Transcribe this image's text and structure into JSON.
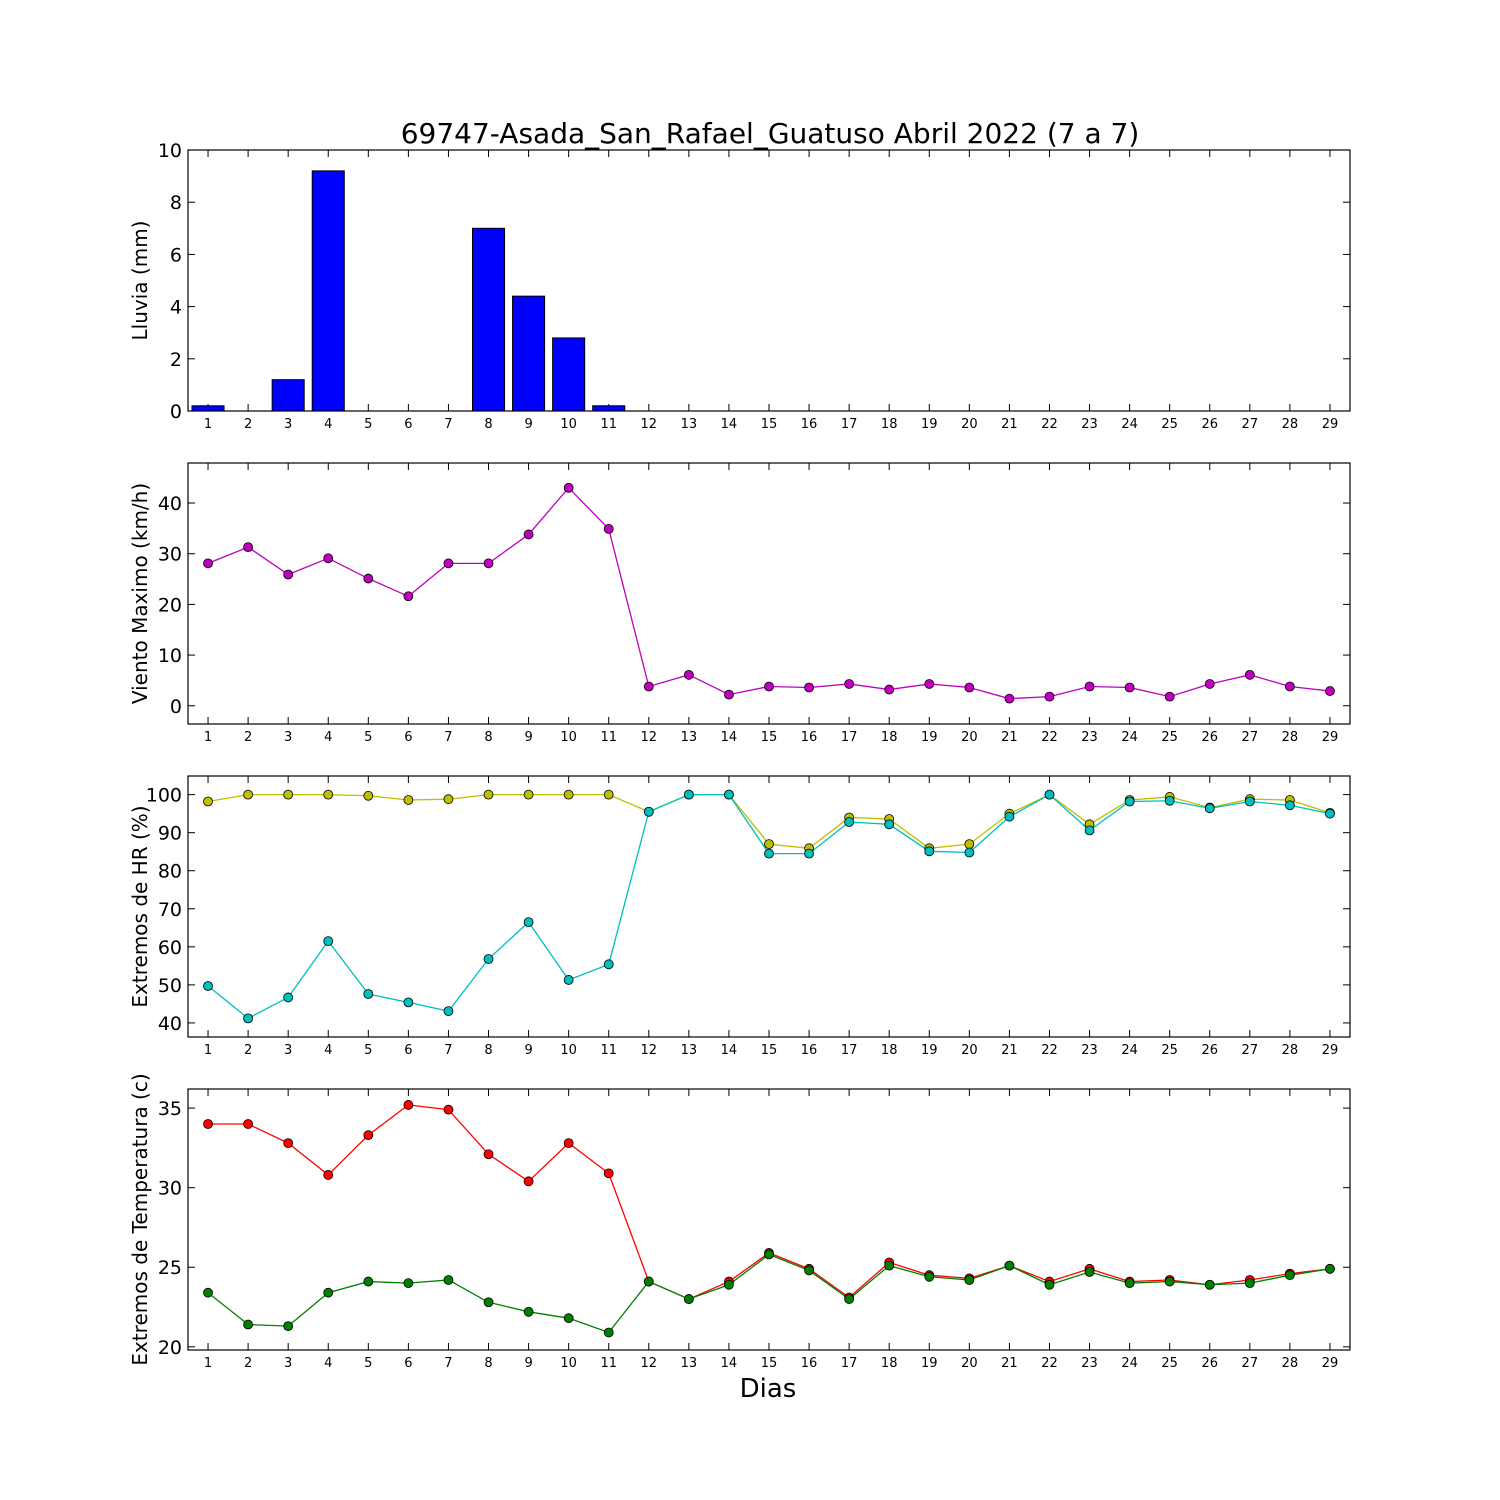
{
  "title": "69747-Asada_San_Rafael_Guatuso Abril 2022  (7 a 7)",
  "xlabel": "Dias",
  "chart_data": [
    {
      "type": "bar",
      "ylabel": "Lluvia (mm)",
      "ylim": [
        0,
        10
      ],
      "yticks": [
        0,
        2,
        4,
        6,
        8,
        10
      ],
      "x": [
        1,
        2,
        3,
        4,
        5,
        6,
        7,
        8,
        9,
        10,
        11,
        12,
        13,
        14,
        15,
        16,
        17,
        18,
        19,
        20,
        21,
        22,
        23,
        24,
        25,
        26,
        27,
        28,
        29
      ],
      "series": [
        {
          "color": "#0000ff",
          "values": [
            0.2,
            0,
            1.2,
            9.2,
            0,
            0,
            0,
            7.0,
            4.4,
            2.8,
            0.2,
            0,
            0,
            0,
            0,
            0,
            0,
            0,
            0,
            0,
            0,
            0,
            0,
            0,
            0,
            0,
            0,
            0,
            0
          ]
        }
      ]
    },
    {
      "type": "line",
      "ylabel": "Viento Maximo (km/h)",
      "ylim": [
        -3.6,
        47.9
      ],
      "yticks": [
        0,
        10,
        20,
        30,
        40
      ],
      "x": [
        1,
        2,
        3,
        4,
        5,
        6,
        7,
        8,
        9,
        10,
        11,
        12,
        13,
        14,
        15,
        16,
        17,
        18,
        19,
        20,
        21,
        22,
        23,
        24,
        25,
        26,
        27,
        28,
        29
      ],
      "series": [
        {
          "color": "#bf00bf",
          "values": [
            28.1,
            31.3,
            25.9,
            29.1,
            25.1,
            21.6,
            28.1,
            28.1,
            33.8,
            43.0,
            34.9,
            3.8,
            6.1,
            2.2,
            3.8,
            3.6,
            4.3,
            3.2,
            4.3,
            3.6,
            1.4,
            1.8,
            3.8,
            3.6,
            1.8,
            4.3,
            6.1,
            3.8,
            2.9
          ]
        }
      ]
    },
    {
      "type": "line",
      "ylabel": "Extremos de HR (%)",
      "ylim": [
        36.3,
        104.9
      ],
      "yticks": [
        40,
        50,
        60,
        70,
        80,
        90,
        100
      ],
      "x": [
        1,
        2,
        3,
        4,
        5,
        6,
        7,
        8,
        9,
        10,
        11,
        12,
        13,
        14,
        15,
        16,
        17,
        18,
        19,
        20,
        21,
        22,
        23,
        24,
        25,
        26,
        27,
        28,
        29
      ],
      "series": [
        {
          "color": "#bfbf00",
          "values": [
            98.2,
            100,
            100,
            100,
            99.7,
            98.6,
            98.8,
            100,
            100,
            100,
            100,
            95.5,
            100,
            100,
            87.0,
            85.9,
            94.0,
            93.6,
            85.9,
            87.0,
            95.0,
            100,
            92.2,
            98.6,
            99.4,
            96.6,
            98.8,
            98.6,
            95.2
          ]
        },
        {
          "color": "#00bfbf",
          "values": [
            49.7,
            41.2,
            46.7,
            61.5,
            47.6,
            45.4,
            43.1,
            56.8,
            66.5,
            51.3,
            55.4,
            95.5,
            100,
            100,
            84.5,
            84.5,
            92.8,
            92.2,
            85.1,
            84.8,
            94.2,
            100,
            90.6,
            98.2,
            98.4,
            96.4,
            98.2,
            97.2,
            95.0
          ]
        }
      ]
    },
    {
      "type": "line",
      "ylabel": "Extremos de Temperatura (c)",
      "ylim": [
        19.8,
        36.2
      ],
      "yticks": [
        20,
        25,
        30,
        35
      ],
      "x": [
        1,
        2,
        3,
        4,
        5,
        6,
        7,
        8,
        9,
        10,
        11,
        12,
        13,
        14,
        15,
        16,
        17,
        18,
        19,
        20,
        21,
        22,
        23,
        24,
        25,
        26,
        27,
        28,
        29
      ],
      "series": [
        {
          "color": "#ff0000",
          "values": [
            34.0,
            34.0,
            32.8,
            30.8,
            33.3,
            35.2,
            34.9,
            32.1,
            30.4,
            32.8,
            30.9,
            24.1,
            23.0,
            24.1,
            25.9,
            24.9,
            23.1,
            25.3,
            24.5,
            24.3,
            25.1,
            24.1,
            24.9,
            24.1,
            24.2,
            23.9,
            24.2,
            24.6,
            24.9
          ]
        },
        {
          "color": "#008000",
          "values": [
            23.4,
            21.4,
            21.3,
            23.4,
            24.1,
            24.0,
            24.2,
            22.8,
            22.2,
            21.8,
            20.9,
            24.1,
            23.0,
            23.9,
            25.8,
            24.8,
            23.0,
            25.1,
            24.4,
            24.2,
            25.1,
            23.9,
            24.7,
            24.0,
            24.1,
            23.9,
            24.0,
            24.5,
            24.9
          ]
        }
      ]
    }
  ]
}
